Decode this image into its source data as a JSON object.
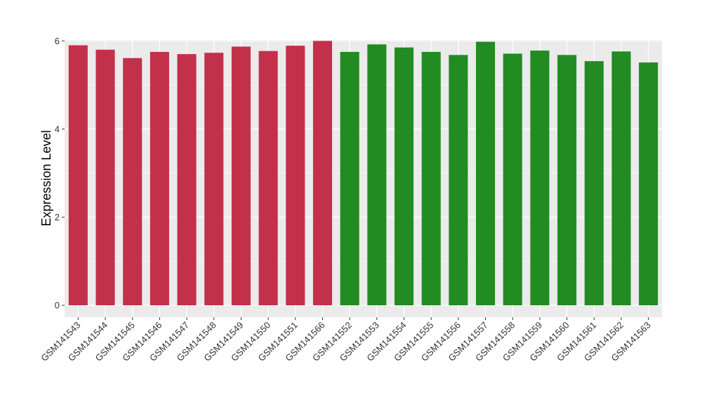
{
  "chart_data": {
    "type": "bar",
    "title": "",
    "xlabel": "",
    "ylabel": "Expression Level",
    "ylim": [
      -0.27,
      6.02
    ],
    "yticks": [
      0,
      2,
      4,
      6
    ],
    "grid": true,
    "legend": "none",
    "categories": [
      "GSM141543",
      "GSM141544",
      "GSM141545",
      "GSM141546",
      "GSM141547",
      "GSM141548",
      "GSM141549",
      "GSM141550",
      "GSM141551",
      "GSM141566",
      "GSM141552",
      "GSM141553",
      "GSM141554",
      "GSM141555",
      "GSM141556",
      "GSM141557",
      "GSM141558",
      "GSM141559",
      "GSM141560",
      "GSM141561",
      "GSM141562",
      "GSM141563"
    ],
    "values": [
      5.9,
      5.8,
      5.61,
      5.75,
      5.7,
      5.73,
      5.87,
      5.77,
      5.89,
      6.0,
      5.75,
      5.92,
      5.85,
      5.75,
      5.68,
      5.98,
      5.71,
      5.78,
      5.68,
      5.54,
      5.76,
      5.51
    ],
    "groups": [
      "a",
      "a",
      "a",
      "a",
      "a",
      "a",
      "a",
      "a",
      "a",
      "a",
      "b",
      "b",
      "b",
      "b",
      "b",
      "b",
      "b",
      "b",
      "b",
      "b",
      "b",
      "b"
    ],
    "colors": {
      "a": "#C3304A",
      "b": "#228B22"
    },
    "panel_background": "#EBEBEB",
    "grid_color": "#FFFFFF"
  }
}
